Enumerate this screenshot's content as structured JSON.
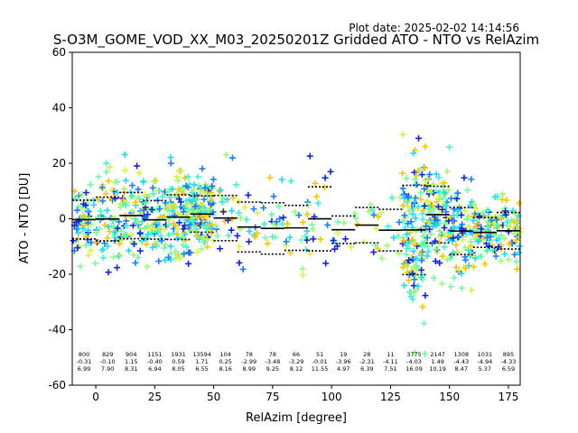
{
  "plot_date": "Plot date: 2025-02-02 14:14:56",
  "chart_data": {
    "type": "scatter",
    "title": "S-O3M_GOME_VOD_XX_M03_20250201Z Gridded ATO - NTO vs RelAzim",
    "xlabel": "RelAzim [degree]",
    "ylabel": "ATO - NTO [DU]",
    "xlim": [
      -10,
      180
    ],
    "ylim": [
      -60,
      60
    ],
    "xticks": [
      0,
      25,
      50,
      75,
      100,
      125,
      150,
      175
    ],
    "yticks": [
      -60,
      -40,
      -20,
      0,
      20,
      40,
      60
    ],
    "grid": false,
    "colors": {
      "scatter_scale": [
        "#ffc400",
        "#dff03a",
        "#9dfa73",
        "#6effa2",
        "#39f7cf",
        "#20d8ff",
        "#1a7dff",
        "#1325d8"
      ],
      "bin_mean": "#000000",
      "bin_std": "#000000"
    },
    "bins": [
      {
        "x": -5,
        "count": 800,
        "mean": -0.31,
        "std": 6.99
      },
      {
        "x": 5,
        "count": 829,
        "mean": -0.1,
        "std": 7.9
      },
      {
        "x": 15,
        "count": 904,
        "mean": 1.15,
        "std": 8.31
      },
      {
        "x": 25,
        "count": 1151,
        "mean": -0.4,
        "std": 6.94
      },
      {
        "x": 35,
        "count": 1931,
        "mean": 0.59,
        "std": 8.05
      },
      {
        "x": 45,
        "count": 13594,
        "mean": 1.71,
        "std": 6.55
      },
      {
        "x": 55,
        "count": 104,
        "mean": 0.25,
        "std": 8.16
      },
      {
        "x": 65,
        "count": 78,
        "mean": -2.99,
        "std": 8.99
      },
      {
        "x": 75,
        "count": 78,
        "mean": -3.48,
        "std": 9.25
      },
      {
        "x": 85,
        "count": 66,
        "mean": -3.29,
        "std": 8.12
      },
      {
        "x": 95,
        "count": 51,
        "mean": -0.01,
        "std": 11.55
      },
      {
        "x": 105,
        "count": 19,
        "mean": -3.96,
        "std": 4.97
      },
      {
        "x": 115,
        "count": 28,
        "mean": -2.31,
        "std": 6.39
      },
      {
        "x": 125,
        "count": 11,
        "mean": -4.11,
        "std": 7.51
      },
      {
        "x": 135,
        "count": 3775,
        "mean": -4.03,
        "std": 16.09
      },
      {
        "x": 145,
        "count": 2147,
        "mean": 1.49,
        "std": 10.19
      },
      {
        "x": 155,
        "count": 1308,
        "mean": -4.43,
        "std": 8.47
      },
      {
        "x": 165,
        "count": 1031,
        "mean": -4.94,
        "std": 5.37
      },
      {
        "x": 175,
        "count": 895,
        "mean": -4.33,
        "std": 6.59
      }
    ]
  }
}
